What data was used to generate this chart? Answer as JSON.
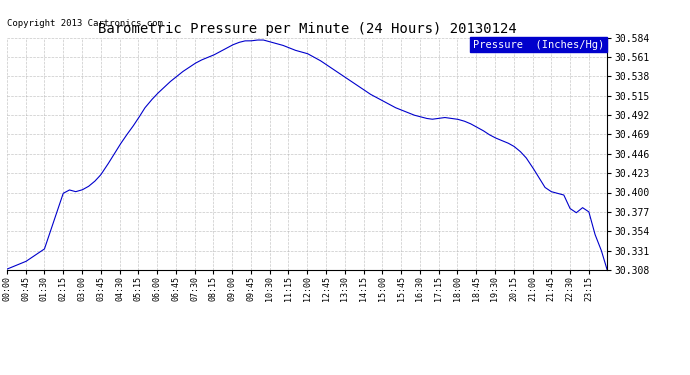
{
  "title": "Barometric Pressure per Minute (24 Hours) 20130124",
  "copyright": "Copyright 2013 Cartronics.com",
  "legend_label": "Pressure  (Inches/Hg)",
  "legend_bg": "#0000cc",
  "legend_fg": "#ffffff",
  "line_color": "#0000cc",
  "bg_color": "#ffffff",
  "grid_color": "#b0b0b0",
  "ylim": [
    30.308,
    30.584
  ],
  "yticks": [
    30.308,
    30.331,
    30.354,
    30.377,
    30.4,
    30.423,
    30.446,
    30.469,
    30.492,
    30.515,
    30.538,
    30.561,
    30.584
  ],
  "x_labels": [
    "00:00",
    "00:45",
    "01:30",
    "02:15",
    "03:00",
    "03:45",
    "04:30",
    "05:15",
    "06:00",
    "06:45",
    "07:30",
    "08:15",
    "09:00",
    "09:45",
    "10:30",
    "11:15",
    "12:00",
    "12:45",
    "13:30",
    "14:15",
    "15:00",
    "15:45",
    "16:30",
    "17:15",
    "18:00",
    "18:45",
    "19:30",
    "20:15",
    "21:00",
    "21:45",
    "22:30",
    "23:15"
  ],
  "pressure_keypoints": [
    [
      0,
      30.309
    ],
    [
      45,
      30.318
    ],
    [
      90,
      30.333
    ],
    [
      135,
      30.399
    ],
    [
      150,
      30.403
    ],
    [
      165,
      30.401
    ],
    [
      180,
      30.403
    ],
    [
      195,
      30.407
    ],
    [
      210,
      30.413
    ],
    [
      225,
      30.421
    ],
    [
      240,
      30.432
    ],
    [
      255,
      30.444
    ],
    [
      270,
      30.456
    ],
    [
      285,
      30.467
    ],
    [
      300,
      30.477
    ],
    [
      315,
      30.488
    ],
    [
      330,
      30.5
    ],
    [
      345,
      30.509
    ],
    [
      360,
      30.517
    ],
    [
      375,
      30.524
    ],
    [
      390,
      30.531
    ],
    [
      405,
      30.537
    ],
    [
      420,
      30.543
    ],
    [
      435,
      30.548
    ],
    [
      450,
      30.553
    ],
    [
      465,
      30.557
    ],
    [
      480,
      30.56
    ],
    [
      495,
      30.563
    ],
    [
      510,
      30.567
    ],
    [
      525,
      30.571
    ],
    [
      540,
      30.575
    ],
    [
      555,
      30.578
    ],
    [
      570,
      30.58
    ],
    [
      585,
      30.58
    ],
    [
      600,
      30.581
    ],
    [
      615,
      30.581
    ],
    [
      630,
      30.579
    ],
    [
      645,
      30.577
    ],
    [
      660,
      30.575
    ],
    [
      675,
      30.572
    ],
    [
      690,
      30.569
    ],
    [
      705,
      30.567
    ],
    [
      720,
      30.565
    ],
    [
      735,
      30.561
    ],
    [
      750,
      30.557
    ],
    [
      765,
      30.552
    ],
    [
      780,
      30.547
    ],
    [
      795,
      30.542
    ],
    [
      810,
      30.537
    ],
    [
      825,
      30.532
    ],
    [
      840,
      30.527
    ],
    [
      855,
      30.522
    ],
    [
      870,
      30.517
    ],
    [
      885,
      30.513
    ],
    [
      900,
      30.509
    ],
    [
      915,
      30.505
    ],
    [
      930,
      30.501
    ],
    [
      945,
      30.498
    ],
    [
      960,
      30.495
    ],
    [
      975,
      30.492
    ],
    [
      990,
      30.49
    ],
    [
      1005,
      30.488
    ],
    [
      1020,
      30.487
    ],
    [
      1035,
      30.488
    ],
    [
      1050,
      30.489
    ],
    [
      1065,
      30.488
    ],
    [
      1080,
      30.487
    ],
    [
      1095,
      30.485
    ],
    [
      1110,
      30.482
    ],
    [
      1125,
      30.478
    ],
    [
      1140,
      30.474
    ],
    [
      1155,
      30.469
    ],
    [
      1170,
      30.465
    ],
    [
      1185,
      30.462
    ],
    [
      1200,
      30.459
    ],
    [
      1215,
      30.455
    ],
    [
      1230,
      30.449
    ],
    [
      1245,
      30.441
    ],
    [
      1260,
      30.43
    ],
    [
      1275,
      30.418
    ],
    [
      1290,
      30.406
    ],
    [
      1305,
      30.401
    ],
    [
      1320,
      30.399
    ],
    [
      1335,
      30.397
    ],
    [
      1350,
      30.381
    ],
    [
      1365,
      30.376
    ],
    [
      1380,
      30.382
    ],
    [
      1395,
      30.377
    ],
    [
      1410,
      30.35
    ],
    [
      1425,
      30.331
    ],
    [
      1439,
      30.308
    ]
  ]
}
